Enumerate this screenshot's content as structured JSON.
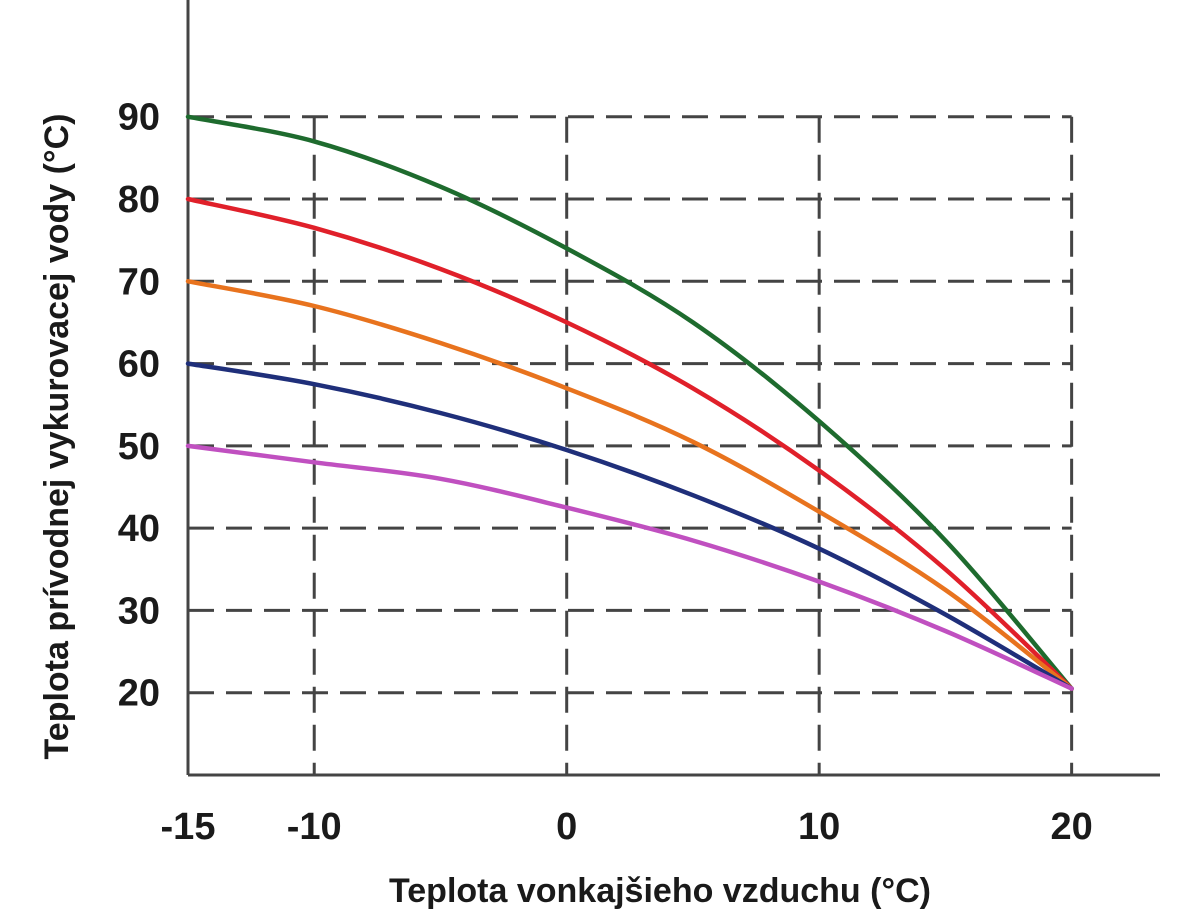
{
  "chart_data": {
    "type": "line",
    "xlabel": "Teplota vonkajšieho vzduchu (°C)",
    "ylabel": "Teplota prívodnej vykurovacej vody (°C)",
    "xlim": [
      -15,
      23.5
    ],
    "ylim": [
      10,
      102
    ],
    "x_ticks": [
      -15,
      -10,
      0,
      10,
      20
    ],
    "x_tick_labels": [
      "-15",
      "-10",
      "0",
      "10",
      "20"
    ],
    "y_ticks": [
      20,
      30,
      40,
      50,
      60,
      70,
      80,
      90
    ],
    "y_tick_labels": [
      "20",
      "30",
      "40",
      "50",
      "60",
      "70",
      "80",
      "90"
    ],
    "grid": true,
    "x_grid": [
      -10,
      0,
      10,
      20
    ],
    "y_grid": [
      20,
      30,
      40,
      50,
      60,
      70,
      80,
      90
    ],
    "series": [
      {
        "color": "#1e6b2e",
        "x": [
          -15,
          -10,
          -5,
          0,
          5,
          10,
          15,
          20
        ],
        "y": [
          90,
          87,
          81.5,
          74,
          65,
          53,
          38.5,
          20.5
        ]
      },
      {
        "color": "#e0202a",
        "x": [
          -15,
          -10,
          -5,
          0,
          5,
          10,
          15,
          20
        ],
        "y": [
          80,
          76.5,
          71.5,
          65,
          57,
          47,
          35,
          20.5
        ]
      },
      {
        "color": "#e8731e",
        "x": [
          -15,
          -10,
          -5,
          0,
          5,
          10,
          15,
          20
        ],
        "y": [
          70,
          67,
          62.5,
          57,
          50.5,
          42,
          32.5,
          20.5
        ]
      },
      {
        "color": "#1f2f7a",
        "x": [
          -15,
          -10,
          -5,
          0,
          5,
          10,
          15,
          20
        ],
        "y": [
          60,
          57.5,
          54,
          49.5,
          44,
          37.5,
          29.5,
          20.5
        ]
      },
      {
        "color": "#c050c0",
        "x": [
          -15,
          -10,
          -5,
          0,
          5,
          10,
          15,
          20
        ],
        "y": [
          50,
          48,
          46,
          42.5,
          38.5,
          33.5,
          27.5,
          20.5
        ]
      }
    ]
  }
}
